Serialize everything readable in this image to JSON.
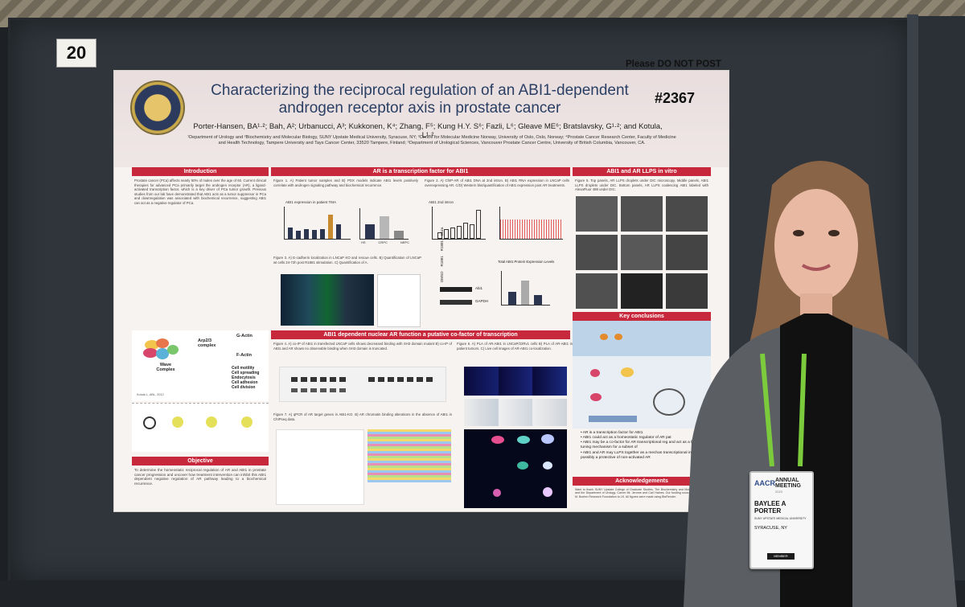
{
  "board": {
    "number": "20"
  },
  "notice": "Please DO NOT POST",
  "poster": {
    "title_line1": "Characterizing the reciprocal regulation of an ABI1-dependent",
    "title_line2": "androgen receptor axis in prostate cancer",
    "abstract_number": "#2367",
    "authors": "Porter-Hansen, BA¹·²; Bah, A²; Urbanucci, A³; Kukkonen, K⁴; Zhang, F⁵; Kung H.Y. S⁶; Fazli, L⁶; Gleave ME⁶; Bratslavsky, G¹·²; and Kotula, L¹·²",
    "affiliations": "¹Department of Urology and ²Biochemistry and Molecular Biology, SUNY Upstate Medical University, Syracuse, NY; ³Centre for Molecular Medicine Norway, University of Oslo, Oslo, Norway; ⁴Prostate Cancer Research Center, Faculty of Medicine and Health Technology, Tampere University and Tays Cancer Center, 33520 Tampere, Finland; ⁵Department of Urological Sciences, Vancouver Prostate Cancer Centre, University of British Columbia, Vancouver, CA.",
    "sections": {
      "introduction": "Introduction",
      "objective": "Objective",
      "ar_transcription": "AR is a transcription factor for ABI1",
      "abi1_nuclear": "ABI1 dependent nuclear AR function a putative co-factor of transcription",
      "llps": "ABI1 and AR LLPS in vitro",
      "key_conclusions": "Key conclusions",
      "acknowledgements": "Acknowledgements"
    },
    "intro_text": "Prostate cancer (PCa) affects nearly 50% of males over the age of 60. Current clinical therapies for advanced PCa primarily target the androgen receptor (AR), a ligand-activated transcription factor, which is a key driver of PCa tumor growth. Previous studies from our lab have demonstrated that ABI1 acts as a tumor suppressor in PCa and downregulation was associated with biochemical recurrence, suggesting ABI1 can act as a negative regulator of PCa.",
    "objective_text": "To determine the homeostatic reciprocal regulation of AR and ABI1 in prostate cancer progression and uncover how treatment intervention can inhibit this ABI1 dependent negative regulation of AR pathway leading to a biochemical recurrence.",
    "fig1_caption": "Figure 1. A) Patient tumor samples and B) PDX models indicate ABI1 levels positively correlate with androgen signaling pathway and biochemical recurrence.",
    "fig2_caption": "Figure 2. A) ChIP-AR of ABI1 DNA at 2nd intron. B) ABI1 RNA expression in LNCaP cells overexpressing AR. C/D) Western blot/quantification of ABI1 expression post AR treatments.",
    "fig3_caption": "Figure 3. A) E-cadherin localization in LNCaP KO and rescue cells. B) Quantification of LNCaP wt cells 24-72h post R1881 stimulation. C) Quantification of A.",
    "llps_caption": "Figure 5. Top panels, AR LLPS droplets under DIC microscopy. Middle panels, ABI1 LLPS droplets under DIC. Bottom panels, AR LLPS coalescing ABI1 labeled with AlexaFluor 488 under DIC.",
    "nuclear_caption": "Figure 4. A) co-IP of ABI1 in transfected LNCaP cells shows decreased binding with SH3 domain mutant B) co-IP of ABI1 and AR shows no observable binding when SH3 domain is truncated.",
    "pla_caption": "Figure 6. A) PLA of AR-ABI1 in LNCaP/22Rv1 cells B) PLA of AR-ABI1 in patient tumors. C) Live cell images of AR-ABI1 co-localization.",
    "fig7_caption": "Figure 7. A) qPCR of AR target genes in ABI1-KO. B) AR chromatin binding alterations in the absence of ABI1 in ChIPseq data.",
    "pathway": {
      "arp": "Arp2/3 complex",
      "gactin": "G-Actin",
      "factin": "F-Actin",
      "wave": "Wave Complex",
      "outcomes": [
        "Cell motility",
        "Cell spreading",
        "Endocytosis",
        "Cell adhesion",
        "Cell division"
      ],
      "cite": "Kotula L, ABL, 2012"
    },
    "chart_labels": {
      "tma": "ABI1 expression in patient TMA",
      "abi1_2nd": "ABI1 2nd intron",
      "total_abi1": "Total ABI1 Protein Expression Levels",
      "abi1": "Abi1",
      "gapdh": "GAPDH",
      "lanes": [
        "DMSO",
        "R1881",
        "R1881",
        "Enza"
      ],
      "hs": "HS",
      "crpc": "CRPC",
      "nepc": "NEPC"
    },
    "conclusions": [
      "AR is a transcription factor for ABI1",
      "ABI1 could act as a homeostatic regulator of AR pat",
      "ABI1 may be a co-factor for AR transcriptional reg and act as a fine tuning mechanism for a subset of",
      "ABI1 and AR may LLPS together as a mechan transcriptional initiation or possibly a protective of non-activated AR"
    ],
    "ack_text": "Want to thank SUNY Upstate College of Graduate Studies, The Biochemistry and Molecular Biology, and the Department of Urology. Carver Mr. Jerome and Carl Haines. Our funding sources NCI R01CA M. Boehm Research Foundation to LK. All figures were made using BioRender."
  },
  "badge": {
    "brand": "AACR",
    "event_line1": "ANNUAL",
    "event_line2": "MEETING",
    "year": "2023",
    "name": "BAYLEE A PORTER",
    "org": "SUNY UPSTATE MEDICAL UNIVERSITY",
    "city": "SYRACUSE, NY",
    "type": "MEMBER"
  },
  "colors": {
    "section_red": "#c8283b",
    "title_navy": "#2a3f63",
    "board_gray": "#2f353b",
    "lanyard_green": "#7ccb3c"
  }
}
